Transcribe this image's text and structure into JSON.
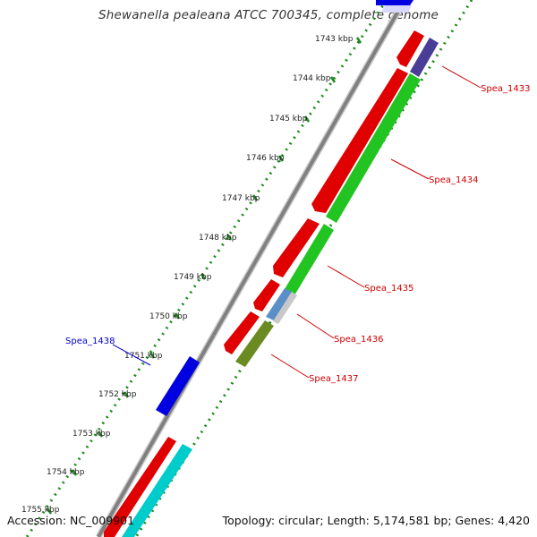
{
  "title": "Shewanella pealeana ATCC 700345, complete genome",
  "footer": {
    "accession": "Accession: NC_009901",
    "topology": "Topology: circular; Length: 5,174,581 bp; Genes: 4,420"
  },
  "colors": {
    "backbone": "#8a8a8a",
    "tick": "#1a8a1a",
    "forward_label": "#0000cc",
    "reverse_label": "#cc0000",
    "red_gene": "#e00000",
    "green_gene": "#22c422",
    "blue_gene": "#0000e0",
    "purple_gene": "#4a3d96",
    "steelblue_gene": "#5a8fc8",
    "olive_gene": "#6a8a22",
    "cyan_gene": "#00cccc"
  },
  "scale": {
    "kbp_labels": [
      "1743 kbp",
      "1744 kbp",
      "1745 kbp",
      "1746 kbp",
      "1747 kbp",
      "1748 kbp",
      "1749 kbp",
      "1750 kbp",
      "1751 kbp",
      "1752 kbp",
      "1753 kbp",
      "1754 kbp",
      "1755 kbp"
    ]
  },
  "gene_labels": {
    "spea_1433": "Spea_1433",
    "spea_1434": "Spea_1434",
    "spea_1435": "Spea_1435",
    "spea_1436": "Spea_1436",
    "spea_1437": "Spea_1437",
    "spea_1438": "Spea_1438"
  }
}
